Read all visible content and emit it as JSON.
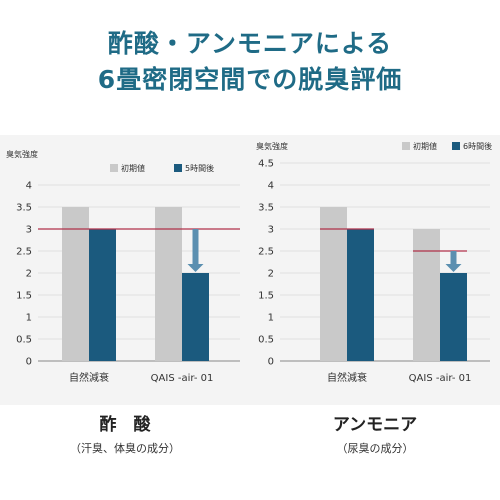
{
  "header": {
    "line1": "酢酸・アンモニアによる",
    "line2": "6畳密閉空間での脱臭評価"
  },
  "colors": {
    "title": "#1f6b86",
    "initial_bar": "#c9c9c9",
    "after_bar": "#1b5a7e",
    "reference_line": "#b0324a",
    "arrow": "#5b8fb0"
  },
  "captions": [
    {
      "main": "酢　酸",
      "sub": "（汗臭、体臭の成分）"
    },
    {
      "main": "アンモニア",
      "sub": "（尿臭の成分）"
    }
  ],
  "chart_data": [
    {
      "type": "bar",
      "ylabel": "臭気強度",
      "ylim": [
        0,
        4
      ],
      "yticks": [
        "0",
        "0.5",
        "1",
        "1.5",
        "2",
        "2.5",
        "3",
        "3.5",
        "4"
      ],
      "categories": [
        "自然減衰",
        "QAIS -air- 01"
      ],
      "legend_position": "top-right",
      "series": [
        {
          "name": "初期値",
          "values": [
            3.5,
            3.5
          ]
        },
        {
          "name": "5時間後",
          "values": [
            3.0,
            2.0
          ]
        }
      ],
      "reference_line": 3.0,
      "arrow": {
        "category_index": 1,
        "from": 3.0,
        "to": 2.0
      }
    },
    {
      "type": "bar",
      "ylabel": "臭気強度",
      "ylim": [
        0,
        4.5
      ],
      "yticks": [
        "0",
        "0.5",
        "1",
        "1.5",
        "2",
        "2.5",
        "3",
        "3.5",
        "4",
        "4.5"
      ],
      "categories": [
        "自然減衰",
        "QAIS -air- 01"
      ],
      "legend_position": "top-right",
      "series": [
        {
          "name": "初期値",
          "values": [
            3.5,
            3.0
          ]
        },
        {
          "name": "6時間後",
          "values": [
            3.0,
            2.0
          ]
        }
      ],
      "reference_line": 3.0,
      "arrow": {
        "category_index": 1,
        "from": 2.5,
        "to": 2.0
      }
    }
  ]
}
